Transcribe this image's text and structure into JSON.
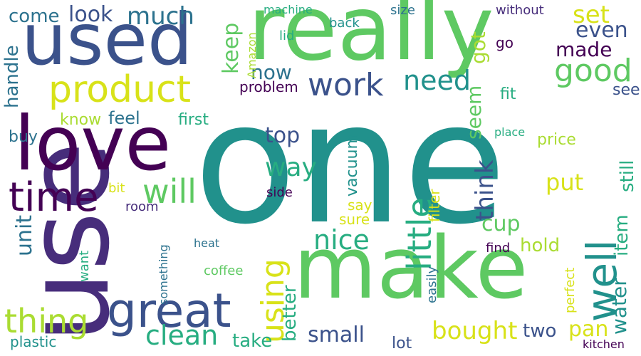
{
  "palette": {
    "dark_purple": "#440154",
    "indigo": "#472d7b",
    "blue": "#3b528b",
    "steel": "#2c728e",
    "teal": "#21918c",
    "green_teal": "#27ad81",
    "green": "#5ec962",
    "lime": "#aadc32",
    "yellow": "#d8e219",
    "background": "#ffffff"
  },
  "words": [
    {
      "text": "one",
      "color": "#21918c"
    },
    {
      "text": "use",
      "color": "#472d7b"
    },
    {
      "text": "really",
      "color": "#5ec962"
    },
    {
      "text": "used",
      "color": "#3b528b"
    },
    {
      "text": "make",
      "color": "#5ec962"
    },
    {
      "text": "love",
      "color": "#440154"
    },
    {
      "text": "great",
      "color": "#3b528b"
    },
    {
      "text": "product",
      "color": "#d8e219"
    },
    {
      "text": "time",
      "color": "#440154"
    },
    {
      "text": "work",
      "color": "#3b528b"
    },
    {
      "text": "good",
      "color": "#5ec962"
    },
    {
      "text": "thing",
      "color": "#aadc32"
    },
    {
      "text": "need",
      "color": "#21918c"
    },
    {
      "text": "well",
      "color": "#21918c"
    },
    {
      "text": "little",
      "color": "#27ad81"
    },
    {
      "text": "using",
      "color": "#d8e219"
    },
    {
      "text": "will",
      "color": "#5ec962"
    },
    {
      "text": "nice",
      "color": "#27ad81"
    },
    {
      "text": "clean",
      "color": "#27ad81"
    },
    {
      "text": "much",
      "color": "#2c728e"
    },
    {
      "text": "look",
      "color": "#3b528b"
    },
    {
      "text": "come",
      "color": "#2c728e"
    },
    {
      "text": "bought",
      "color": "#d8e219"
    },
    {
      "text": "way",
      "color": "#27ad81"
    },
    {
      "text": "set",
      "color": "#d8e219"
    },
    {
      "text": "even",
      "color": "#3b528b"
    },
    {
      "text": "made",
      "color": "#440154"
    },
    {
      "text": "now",
      "color": "#2c728e"
    },
    {
      "text": "water",
      "color": "#21918c"
    },
    {
      "text": "item",
      "color": "#27ad81"
    },
    {
      "text": "still",
      "color": "#27ad81"
    },
    {
      "text": "put",
      "color": "#d8e219"
    },
    {
      "text": "cup",
      "color": "#5ec962"
    },
    {
      "text": "pan",
      "color": "#d8e219"
    },
    {
      "text": "two",
      "color": "#3b528b"
    },
    {
      "text": "small",
      "color": "#3b528b"
    },
    {
      "text": "unit",
      "color": "#2c728e"
    },
    {
      "text": "handle",
      "color": "#2c728e"
    },
    {
      "text": "keep",
      "color": "#5ec962"
    },
    {
      "text": "got",
      "color": "#aadc32"
    },
    {
      "text": "seem",
      "color": "#5ec962"
    },
    {
      "text": "think",
      "color": "#3b528b"
    },
    {
      "text": "vacuum",
      "color": "#21918c"
    },
    {
      "text": "hold",
      "color": "#aadc32"
    },
    {
      "text": "top",
      "color": "#3b528b"
    },
    {
      "text": "better",
      "color": "#27ad81"
    },
    {
      "text": "take",
      "color": "#27ad81"
    },
    {
      "text": "lot",
      "color": "#3b528b"
    },
    {
      "text": "feel",
      "color": "#2c728e"
    },
    {
      "text": "first",
      "color": "#27ad81"
    },
    {
      "text": "know",
      "color": "#aadc32"
    },
    {
      "text": "buy",
      "color": "#2c728e"
    },
    {
      "text": "say",
      "color": "#d8e219"
    },
    {
      "text": "sure",
      "color": "#d8e219"
    },
    {
      "text": "problem",
      "color": "#440154"
    },
    {
      "text": "price",
      "color": "#aadc32"
    },
    {
      "text": "see",
      "color": "#3b528b"
    },
    {
      "text": "fit",
      "color": "#27ad81"
    },
    {
      "text": "go",
      "color": "#440154"
    },
    {
      "text": "without",
      "color": "#472d7b"
    },
    {
      "text": "lid",
      "color": "#27ad81"
    },
    {
      "text": "machine",
      "color": "#27ad81"
    },
    {
      "text": "back",
      "color": "#21918c"
    },
    {
      "text": "size",
      "color": "#2c728e"
    },
    {
      "text": "filter",
      "color": "#d8e219"
    },
    {
      "text": "side",
      "color": "#440154"
    },
    {
      "text": "room",
      "color": "#472d7b"
    },
    {
      "text": "bit",
      "color": "#d8e219"
    },
    {
      "text": "coffee",
      "color": "#5ec962"
    },
    {
      "text": "find",
      "color": "#440154"
    },
    {
      "text": "easily",
      "color": "#2c728e"
    },
    {
      "text": "plastic",
      "color": "#21918c"
    },
    {
      "text": "want",
      "color": "#27ad81"
    },
    {
      "text": "something",
      "color": "#2c728e"
    },
    {
      "text": "heat",
      "color": "#2c728e"
    },
    {
      "text": "kitchen",
      "color": "#440154"
    },
    {
      "text": "place",
      "color": "#27ad81"
    },
    {
      "text": "perfect",
      "color": "#d8e219"
    },
    {
      "text": "Amazon",
      "color": "#aadc32"
    }
  ]
}
